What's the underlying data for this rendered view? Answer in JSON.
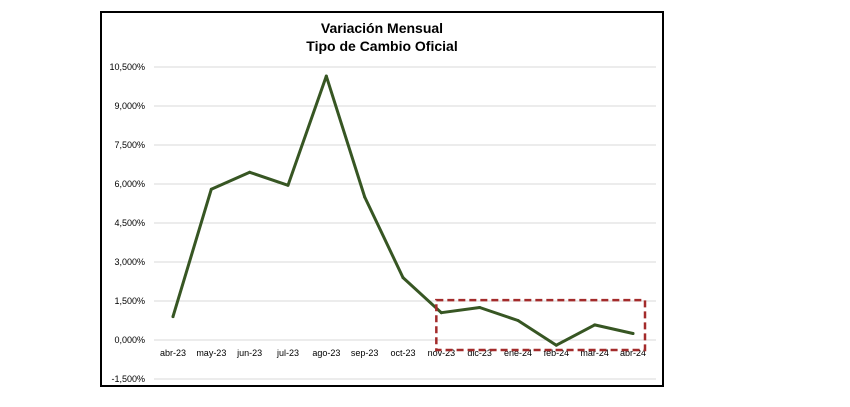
{
  "chart_data": {
    "type": "line",
    "title": "Variación Mensual",
    "subtitle": "Tipo de Cambio Oficial",
    "xlabel": "",
    "ylabel": "",
    "categories": [
      "abr-23",
      "may-23",
      "jun-23",
      "jul-23",
      "ago-23",
      "sep-23",
      "oct-23",
      "nov-23",
      "dic-23",
      "ene-24",
      "feb-24",
      "mar-24",
      "abr-24"
    ],
    "series": [
      {
        "values": [
          0.9,
          5.8,
          6.45,
          5.95,
          10.15,
          5.5,
          2.4,
          1.05,
          1.25,
          0.75,
          -0.2,
          0.58,
          0.25
        ]
      }
    ],
    "ylim": [
      -1.5,
      10.5
    ],
    "yticks": [
      -1.5,
      0,
      1.5,
      3,
      4.5,
      6,
      7.5,
      9,
      10.5
    ],
    "ytick_labels": [
      "-1,500%",
      "0,000%",
      "1,500%",
      "3,000%",
      "4,500%",
      "6,000%",
      "7,500%",
      "9,000%",
      "10,500%"
    ],
    "grid": true,
    "legend": "none",
    "highlight_range": [
      "nov-23",
      "abr-24"
    ],
    "colors": {
      "line": "#375623",
      "grid": "#d9d9d9",
      "highlight": "#a32b2b"
    }
  }
}
